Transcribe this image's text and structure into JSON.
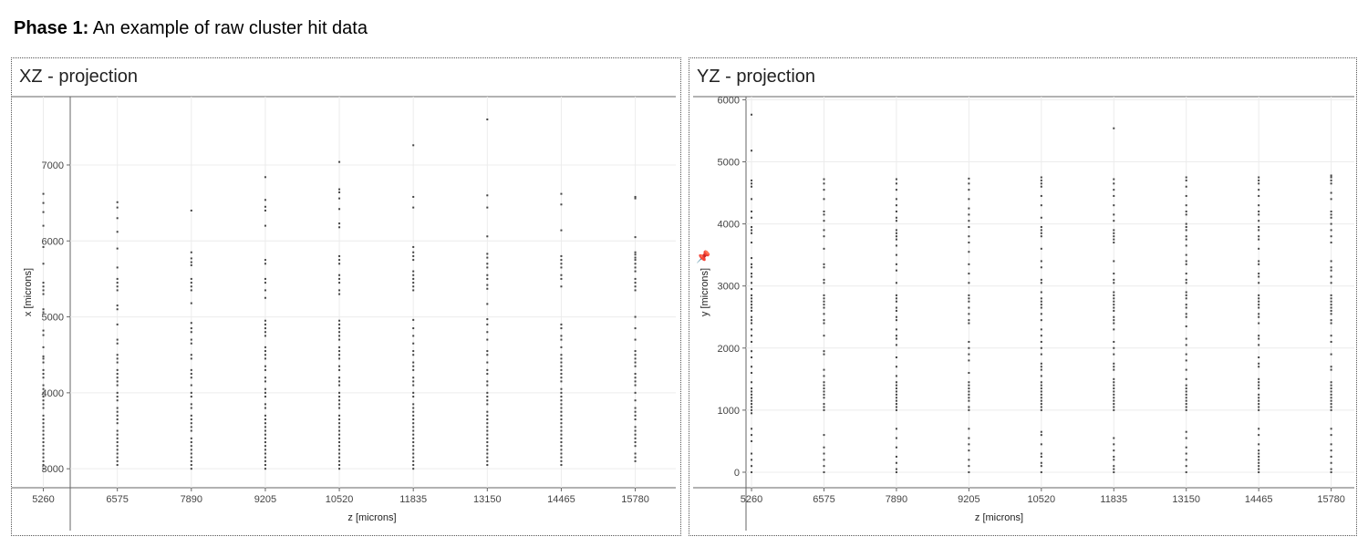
{
  "page": {
    "heading_bold": "Phase 1:",
    "heading_rest": " An example of raw cluster hit data"
  },
  "toolbar": {
    "pin_icon": "pin-icon"
  },
  "chart_data": [
    {
      "type": "scatter",
      "title": "XZ - projection",
      "xlabel": "z [microns]",
      "ylabel": "x [microns]",
      "x_ticks": [
        5260,
        6575,
        7890,
        9205,
        10520,
        11835,
        13150,
        14465,
        15780
      ],
      "y_ticks": [
        3000,
        4000,
        5000,
        6000,
        7000
      ],
      "xlim": [
        4700,
        16500
      ],
      "ylim": [
        2750,
        7900
      ],
      "grid": true,
      "color": "#444444",
      "columns": [
        {
          "z": 5260,
          "x": [
            6620,
            6500,
            6380,
            6200,
            5920,
            5700,
            5450,
            5400,
            5350,
            5300,
            5100,
            5060,
            4820,
            4760,
            4600,
            4480,
            4450,
            4400,
            4300,
            4250,
            4200,
            4100,
            4050,
            4000,
            3950,
            3900,
            3850,
            3800,
            3700,
            3650,
            3600,
            3550,
            3500,
            3450,
            3400,
            3350,
            3300,
            3250,
            3200,
            3150,
            3100,
            3050,
            3000
          ]
        },
        {
          "z": 6575,
          "x": [
            6510,
            6440,
            6300,
            6120,
            5900,
            5650,
            5500,
            5450,
            5400,
            5350,
            5150,
            5100,
            4900,
            4700,
            4650,
            4500,
            4450,
            4400,
            4300,
            4250,
            4200,
            4150,
            4100,
            4000,
            3950,
            3900,
            3800,
            3750,
            3700,
            3650,
            3600,
            3500,
            3450,
            3400,
            3350,
            3300,
            3250,
            3200,
            3150,
            3100,
            3050
          ]
        },
        {
          "z": 7890,
          "x": [
            6400,
            5850,
            5770,
            5720,
            5680,
            5500,
            5450,
            5400,
            5350,
            5180,
            4920,
            4850,
            4800,
            4700,
            4650,
            4500,
            4450,
            4300,
            4250,
            4200,
            4100,
            4000,
            3950,
            3850,
            3800,
            3700,
            3650,
            3600,
            3550,
            3500,
            3400,
            3350,
            3300,
            3250,
            3200,
            3150,
            3100,
            3050,
            3000
          ]
        },
        {
          "z": 9205,
          "x": [
            6840,
            6540,
            6450,
            6400,
            6200,
            5750,
            5700,
            5500,
            5450,
            5350,
            5250,
            4950,
            4900,
            4850,
            4800,
            4750,
            4600,
            4550,
            4500,
            4450,
            4350,
            4300,
            4200,
            4150,
            4050,
            4000,
            3950,
            3850,
            3800,
            3700,
            3650,
            3600,
            3550,
            3500,
            3450,
            3400,
            3350,
            3300,
            3250,
            3200,
            3150,
            3100,
            3050,
            3000
          ]
        },
        {
          "z": 10520,
          "x": [
            7040,
            6680,
            6640,
            6560,
            6420,
            6230,
            6180,
            5800,
            5750,
            5700,
            5550,
            5500,
            5450,
            5350,
            5300,
            4950,
            4900,
            4850,
            4800,
            4750,
            4700,
            4600,
            4550,
            4500,
            4450,
            4350,
            4300,
            4200,
            4150,
            4100,
            4000,
            3950,
            3900,
            3850,
            3800,
            3700,
            3650,
            3600,
            3550,
            3500,
            3450,
            3400,
            3350,
            3300,
            3250,
            3200,
            3150,
            3100,
            3050,
            3000
          ]
        },
        {
          "z": 11835,
          "x": [
            7260,
            6580,
            6440,
            5920,
            5850,
            5800,
            5750,
            5600,
            5550,
            5500,
            5450,
            5400,
            5350,
            4960,
            4850,
            4750,
            4650,
            4550,
            4500,
            4400,
            4350,
            4300,
            4200,
            4150,
            4100,
            4000,
            3950,
            3850,
            3800,
            3750,
            3700,
            3650,
            3600,
            3550,
            3500,
            3450,
            3400,
            3350,
            3300,
            3250,
            3200,
            3150,
            3100,
            3050,
            3000
          ]
        },
        {
          "z": 13150,
          "x": [
            7600,
            6600,
            6440,
            6060,
            5830,
            5780,
            5700,
            5650,
            5550,
            5500,
            5420,
            5370,
            5170,
            4970,
            4900,
            4800,
            4700,
            4550,
            4500,
            4400,
            4300,
            4250,
            4150,
            4100,
            4000,
            3950,
            3900,
            3850,
            3750,
            3700,
            3650,
            3600,
            3550,
            3500,
            3450,
            3400,
            3350,
            3300,
            3250,
            3200,
            3150,
            3100,
            3050
          ]
        },
        {
          "z": 14465,
          "x": [
            6620,
            6480,
            6140,
            5800,
            5750,
            5700,
            5650,
            5550,
            5500,
            5400,
            4900,
            4850,
            4750,
            4700,
            4600,
            4500,
            4450,
            4400,
            4350,
            4300,
            4250,
            4200,
            4150,
            4050,
            4000,
            3950,
            3900,
            3850,
            3800,
            3750,
            3700,
            3650,
            3600,
            3550,
            3500,
            3450,
            3400,
            3350,
            3300,
            3250,
            3200,
            3150,
            3100,
            3050
          ]
        },
        {
          "z": 15780,
          "x": [
            6580,
            6560,
            6050,
            5850,
            5820,
            5780,
            5750,
            5700,
            5650,
            5600,
            5500,
            5450,
            5400,
            5350,
            5000,
            4850,
            4700,
            4550,
            4500,
            4450,
            4400,
            4350,
            4250,
            4200,
            4150,
            4100,
            4000,
            3900,
            3800,
            3750,
            3700,
            3650,
            3550,
            3500,
            3450,
            3400,
            3350,
            3300,
            3200,
            3150,
            3100
          ]
        }
      ]
    },
    {
      "type": "scatter",
      "title": "YZ - projection",
      "xlabel": "z [microns]",
      "ylabel": "y [microns]",
      "x_ticks": [
        5260,
        6575,
        7890,
        9205,
        10520,
        11835,
        13150,
        14465,
        15780
      ],
      "y_ticks": [
        0,
        1000,
        2000,
        3000,
        4000,
        5000,
        6000
      ],
      "xlim": [
        4200,
        16200
      ],
      "ylim": [
        -250,
        6050
      ],
      "grid": true,
      "color": "#444444",
      "columns": [
        {
          "z": 5260,
          "y": [
            5760,
            5180,
            4700,
            4650,
            4600,
            4400,
            4200,
            4100,
            3950,
            3900,
            3850,
            3700,
            3450,
            3350,
            3300,
            3200,
            3150,
            3050,
            2950,
            2850,
            2800,
            2750,
            2700,
            2650,
            2600,
            2500,
            2450,
            2400,
            2300,
            2200,
            2100,
            1950,
            1850,
            1700,
            1600,
            1450,
            1350,
            1300,
            1250,
            1200,
            1150,
            1100,
            1050,
            1000,
            950,
            700,
            600,
            500,
            300,
            200,
            100,
            0
          ]
        },
        {
          "z": 6575,
          "y": [
            4720,
            4650,
            4550,
            4400,
            4200,
            4150,
            4050,
            3900,
            3800,
            3600,
            3350,
            3300,
            3100,
            3050,
            2850,
            2800,
            2750,
            2700,
            2650,
            2550,
            2450,
            2400,
            2200,
            1950,
            1900,
            1650,
            1550,
            1450,
            1400,
            1350,
            1300,
            1250,
            1200,
            1100,
            1050,
            1000,
            600,
            400,
            300,
            200,
            100,
            0
          ]
        },
        {
          "z": 7890,
          "y": [
            4720,
            4650,
            4550,
            4400,
            4300,
            4200,
            4100,
            4050,
            3900,
            3850,
            3800,
            3750,
            3650,
            3500,
            3350,
            3250,
            3050,
            2850,
            2800,
            2750,
            2650,
            2600,
            2500,
            2450,
            2300,
            2200,
            2150,
            2050,
            1850,
            1700,
            1550,
            1450,
            1400,
            1350,
            1300,
            1250,
            1200,
            1150,
            1100,
            1050,
            1000,
            700,
            550,
            400,
            250,
            150,
            50,
            0
          ]
        },
        {
          "z": 9205,
          "y": [
            4730,
            4650,
            4550,
            4400,
            4250,
            4150,
            4050,
            3950,
            3800,
            3700,
            3550,
            3350,
            3200,
            3050,
            2850,
            2800,
            2750,
            2650,
            2550,
            2450,
            2400,
            2100,
            2000,
            1900,
            1800,
            1600,
            1450,
            1400,
            1350,
            1300,
            1250,
            1200,
            1150,
            1050,
            1000,
            700,
            550,
            450,
            350,
            200,
            100,
            0
          ]
        },
        {
          "z": 10520,
          "y": [
            4750,
            4700,
            4650,
            4600,
            4450,
            4300,
            4100,
            3950,
            3900,
            3850,
            3800,
            3600,
            3400,
            3300,
            3100,
            3050,
            2900,
            2800,
            2750,
            2700,
            2650,
            2550,
            2450,
            2300,
            2200,
            2100,
            2000,
            1900,
            1750,
            1700,
            1650,
            1550,
            1450,
            1400,
            1350,
            1300,
            1250,
            1200,
            1150,
            1100,
            1050,
            1000,
            650,
            600,
            450,
            300,
            250,
            150,
            100,
            0
          ]
        },
        {
          "z": 11835,
          "y": [
            5540,
            4720,
            4650,
            4550,
            4450,
            4300,
            4150,
            4050,
            3900,
            3850,
            3800,
            3750,
            3700,
            3400,
            3200,
            3100,
            3050,
            2900,
            2850,
            2800,
            2750,
            2700,
            2650,
            2600,
            2500,
            2450,
            2400,
            2300,
            2100,
            2000,
            1900,
            1750,
            1700,
            1650,
            1500,
            1450,
            1400,
            1350,
            1300,
            1250,
            1200,
            1150,
            1100,
            1050,
            1000,
            550,
            450,
            350,
            250,
            200,
            100,
            50,
            0
          ]
        },
        {
          "z": 13150,
          "y": [
            4750,
            4700,
            4600,
            4450,
            4300,
            4200,
            4150,
            4000,
            3950,
            3900,
            3800,
            3750,
            3650,
            3500,
            3400,
            3350,
            3200,
            3100,
            3050,
            2900,
            2850,
            2800,
            2700,
            2650,
            2550,
            2500,
            2350,
            2150,
            2050,
            1900,
            1800,
            1650,
            1500,
            1400,
            1350,
            1300,
            1250,
            1200,
            1150,
            1100,
            1050,
            1000,
            650,
            550,
            400,
            300,
            200,
            100,
            0
          ]
        },
        {
          "z": 14465,
          "y": [
            4750,
            4700,
            4650,
            4550,
            4450,
            4300,
            4200,
            4150,
            4050,
            3950,
            3900,
            3800,
            3750,
            3600,
            3400,
            3350,
            3200,
            3150,
            3050,
            2850,
            2800,
            2750,
            2700,
            2650,
            2550,
            2500,
            2400,
            2200,
            2150,
            2050,
            1850,
            1750,
            1700,
            1500,
            1450,
            1400,
            1350,
            1250,
            1200,
            1150,
            1100,
            1050,
            1000,
            700,
            600,
            450,
            350,
            300,
            250,
            200,
            150,
            100,
            50,
            0
          ]
        },
        {
          "z": 15780,
          "y": [
            4780,
            4750,
            4700,
            4650,
            4500,
            4400,
            4200,
            4150,
            4100,
            4000,
            3900,
            3800,
            3700,
            3400,
            3300,
            3250,
            3150,
            3050,
            2850,
            2800,
            2750,
            2700,
            2650,
            2600,
            2550,
            2450,
            2400,
            2200,
            2100,
            1900,
            1700,
            1650,
            1450,
            1400,
            1350,
            1300,
            1250,
            1200,
            1150,
            1100,
            1050,
            1000,
            700,
            600,
            450,
            350,
            250,
            150,
            50,
            0
          ]
        }
      ]
    }
  ]
}
